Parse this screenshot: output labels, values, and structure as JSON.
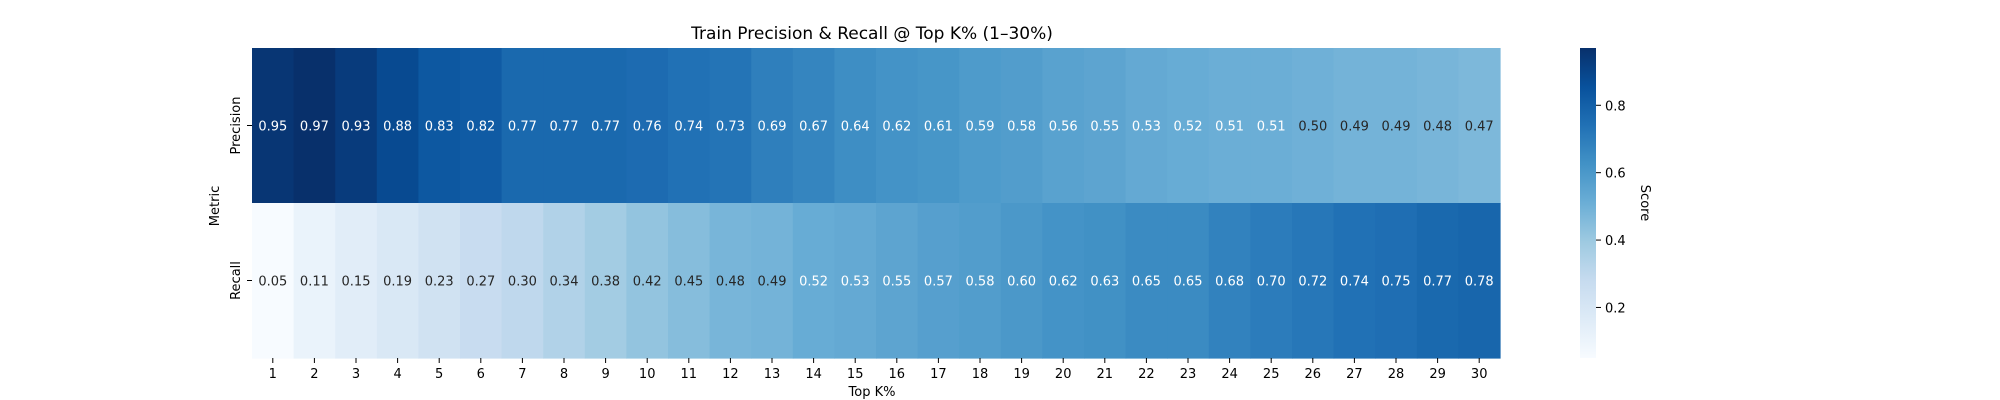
{
  "chart_data": {
    "type": "heatmap",
    "title": "Train Precision & Recall @ Top K% (1–30%)",
    "xlabel": "Top K%",
    "ylabel": "Metric",
    "x_categories": [
      "1",
      "2",
      "3",
      "4",
      "5",
      "6",
      "7",
      "8",
      "9",
      "10",
      "11",
      "12",
      "13",
      "14",
      "15",
      "16",
      "17",
      "18",
      "19",
      "20",
      "21",
      "22",
      "23",
      "24",
      "25",
      "26",
      "27",
      "28",
      "29",
      "30"
    ],
    "y_categories": [
      "Precision",
      "Recall"
    ],
    "values": [
      [
        0.95,
        0.97,
        0.93,
        0.88,
        0.83,
        0.82,
        0.77,
        0.77,
        0.77,
        0.76,
        0.74,
        0.73,
        0.69,
        0.67,
        0.64,
        0.62,
        0.61,
        0.59,
        0.58,
        0.56,
        0.55,
        0.53,
        0.52,
        0.51,
        0.51,
        0.5,
        0.49,
        0.49,
        0.48,
        0.47
      ],
      [
        0.05,
        0.11,
        0.15,
        0.19,
        0.23,
        0.27,
        0.3,
        0.34,
        0.38,
        0.42,
        0.45,
        0.48,
        0.49,
        0.52,
        0.53,
        0.55,
        0.57,
        0.58,
        0.6,
        0.62,
        0.63,
        0.65,
        0.65,
        0.68,
        0.7,
        0.72,
        0.74,
        0.75,
        0.77,
        0.78
      ]
    ],
    "colormap": "Blues",
    "vmin": 0.05,
    "vmax": 0.97,
    "colorbar": {
      "label": "Score",
      "ticks": [
        "0.2",
        "0.4",
        "0.6",
        "0.8"
      ]
    },
    "annotations": true
  }
}
